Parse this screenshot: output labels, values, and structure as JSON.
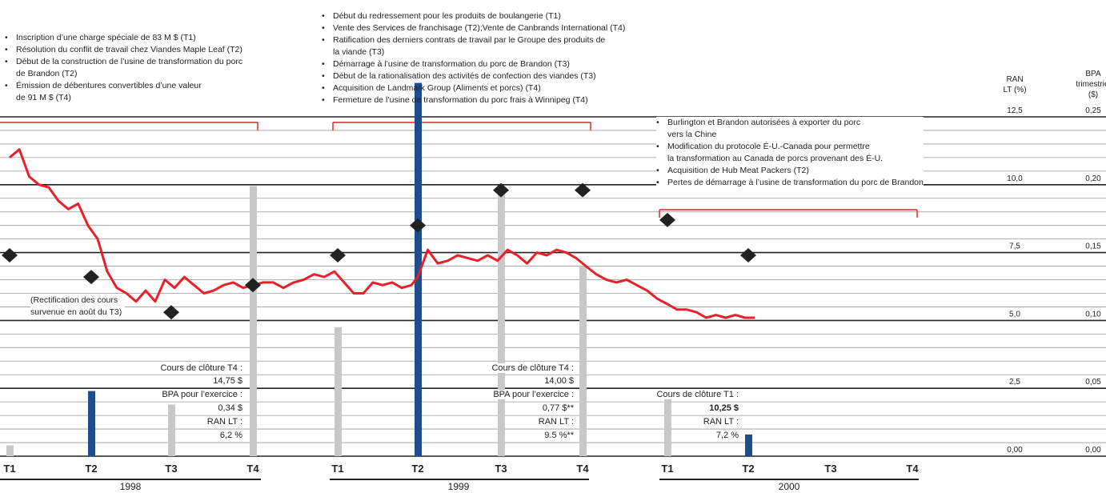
{
  "annotations": {
    "block1": [
      "Inscription d’une charge spéciale de 83 M $ (T1)",
      "Résolution du conflit de travail chez Viandes Maple Leaf (T2)",
      "Début de la construction de l’usine de transformation du porc",
      "de Brandon (T2)",
      "Émission de débentures convertibles d’une valeur",
      "de 91 M $ (T4)"
    ],
    "block2": [
      "Début du redressement pour les produits de boulangerie (T1)",
      "Vente des Services de franchisage (T2);Vente de Canbrands International (T4)",
      "Ratification des derniers contrats de travail par le Groupe des produits de",
      "la viande (T3)",
      "Démarrage à l’usine de transformation du porc de Brandon (T3)",
      "Début de la rationalisation des activités de confection des viandes (T3)",
      "Acquisition de Landmark Group (Aliments et porcs) (T4)",
      "Fermeture de l’usine de transformation du porc frais à Winnipeg (T4)"
    ],
    "block3": [
      "Burlington et Brandon autorisées à exporter du porc",
      "vers la Chine",
      "Modification du protocole É-U.-Canada pour permettre",
      "la transformation au Canada de porcs provenant des É-U.",
      "Acquisition de Hub Meat Packers (T2)",
      "Pertes de démarrage à l’usine de transformation du porc de Brandon"
    ],
    "rectification": [
      "(Rectification des cours",
      "survenue en août du T3)"
    ]
  },
  "year_stats": [
    {
      "close_label": "Cours de clôture T4 :",
      "close_value": "14,75 $",
      "eps_label": "BPA pour l’exercice :",
      "eps_value": "0,34 $",
      "roe_label": "RAN LT :",
      "roe_value": "6,2 %"
    },
    {
      "close_label": "Cours de clôture T4 :",
      "close_value": "14,00 $",
      "eps_label": "BPA pour l’exercice :",
      "eps_value": "0,77 $**",
      "roe_label": "RAN LT :",
      "roe_value": "9.5 %**"
    },
    {
      "close_label": "Cours de clôture T1 :",
      "close_value": "10,25 $",
      "roe_label": "RAN LT :",
      "roe_value": "7,2 %"
    }
  ],
  "chart_data": {
    "type": "bar",
    "quarters": [
      "T1",
      "T2",
      "T3",
      "T4",
      "T1",
      "T2",
      "T3",
      "T4",
      "T1",
      "T2",
      "T3",
      "T4"
    ],
    "years": [
      "1998",
      "1999",
      "2000"
    ],
    "left_axis": {
      "title_lines": [
        "RAN",
        "LT (%)"
      ],
      "ticks": [
        "12,5",
        "10,0",
        "7,5",
        "5,0",
        "2,5",
        "0,00"
      ],
      "range": [
        0,
        12.5
      ]
    },
    "right_axis": {
      "title_lines": [
        "BPA",
        "trimestriel",
        "($)"
      ],
      "ticks": [
        "0,25",
        "0,20",
        "0,15",
        "0,10",
        "0,05",
        "0,00"
      ],
      "range": [
        0,
        0.25
      ]
    },
    "series": [
      {
        "kind": "eps_bars",
        "values": [
          0.008,
          0.048,
          0.038,
          0.199,
          0.095,
          0.275,
          0.193,
          0.14,
          0.048,
          0.016,
          null,
          null
        ],
        "dark": [
          false,
          true,
          false,
          false,
          false,
          true,
          false,
          false,
          false,
          true,
          false,
          false
        ]
      },
      {
        "kind": "roe_markers",
        "values": [
          7.4,
          6.6,
          5.3,
          6.3,
          7.4,
          8.5,
          9.8,
          9.8,
          8.7,
          7.4,
          null,
          null
        ]
      },
      {
        "kind": "share_price_line",
        "x": [
          0,
          0.12,
          0.24,
          0.36,
          0.48,
          0.6,
          0.72,
          0.84,
          0.96,
          1.08,
          1.2,
          1.32,
          1.44,
          1.56,
          1.68,
          1.8,
          1.92,
          2.04,
          2.16,
          2.28,
          2.4,
          2.52,
          2.64,
          2.76,
          2.88,
          3,
          3.12,
          3.24,
          3.36,
          3.48,
          3.6,
          3.72,
          3.84,
          3.96,
          4.08,
          4.2,
          4.32,
          4.44,
          4.56,
          4.68,
          4.8,
          4.92,
          5,
          5.12,
          5.24,
          5.36,
          5.48,
          5.6,
          5.72,
          5.84,
          5.96,
          6.08,
          6.2,
          6.32,
          6.44,
          6.56,
          6.68,
          6.8,
          6.92,
          7.04,
          7.16,
          7.28,
          7.4,
          7.52,
          7.64,
          7.76,
          7.88,
          8,
          8.12,
          8.24,
          8.36,
          8.48,
          8.6,
          8.72,
          8.84,
          8.96,
          9.08
        ],
        "values": [
          11.0,
          11.3,
          10.3,
          10.0,
          9.9,
          9.4,
          9.1,
          9.3,
          8.5,
          8.0,
          6.8,
          6.2,
          6.0,
          5.7,
          6.1,
          5.7,
          6.5,
          6.2,
          6.6,
          6.3,
          6.0,
          6.1,
          6.3,
          6.4,
          6.2,
          6.3,
          6.4,
          6.4,
          6.2,
          6.4,
          6.5,
          6.7,
          6.6,
          6.8,
          6.4,
          6.0,
          6.0,
          6.4,
          6.3,
          6.4,
          6.2,
          6.3,
          6.6,
          7.6,
          7.1,
          7.2,
          7.4,
          7.3,
          7.2,
          7.4,
          7.2,
          7.6,
          7.4,
          7.1,
          7.5,
          7.4,
          7.6,
          7.5,
          7.3,
          7.0,
          6.7,
          6.5,
          6.4,
          6.5,
          6.3,
          6.1,
          5.8,
          5.6,
          5.4,
          5.4,
          5.3,
          5.1,
          5.2,
          5.1,
          5.2,
          5.1,
          5.1
        ]
      }
    ]
  }
}
